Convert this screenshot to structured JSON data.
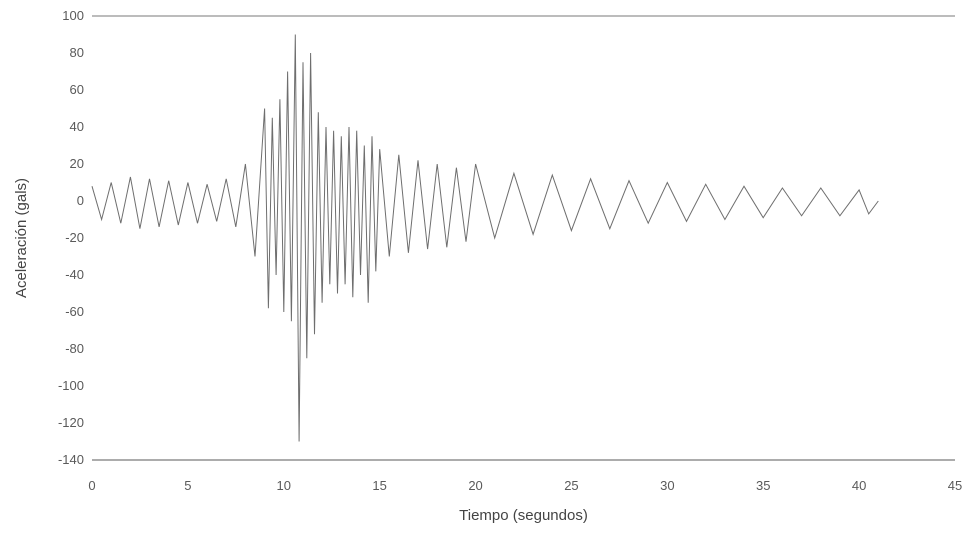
{
  "chart_data": {
    "type": "line",
    "title": "",
    "xlabel": "Tiempo (segundos)",
    "ylabel": "Aceleración (gals)",
    "xlim": [
      0,
      45
    ],
    "ylim": [
      -140,
      100
    ],
    "x_ticks": [
      0,
      5,
      10,
      15,
      20,
      25,
      30,
      35,
      40,
      45
    ],
    "y_ticks": [
      100,
      80,
      60,
      40,
      20,
      0,
      -20,
      -40,
      -60,
      -80,
      -100,
      -120,
      -140
    ],
    "grid": false,
    "legend": "none",
    "line_color": "#6e6e6e",
    "series": [
      {
        "x": [
          0,
          0.5,
          1,
          1.5,
          2,
          2.5,
          3,
          3.5,
          4,
          4.5,
          5,
          5.5,
          6,
          6.5,
          7,
          7.5,
          8,
          8.5,
          9,
          9.2,
          9.4,
          9.6,
          9.8,
          10,
          10.2,
          10.4,
          10.6,
          10.8,
          11,
          11.2,
          11.4,
          11.6,
          11.8,
          12,
          12.2,
          12.4,
          12.6,
          12.8,
          13,
          13.2,
          13.4,
          13.6,
          13.8,
          14,
          14.2,
          14.4,
          14.6,
          14.8,
          15,
          15.5,
          16,
          16.5,
          17,
          17.5,
          18,
          18.5,
          19,
          19.5,
          20,
          21,
          22,
          23,
          24,
          25,
          26,
          27,
          28,
          29,
          30,
          31,
          32,
          33,
          34,
          35,
          36,
          37,
          38,
          39,
          40,
          40.5,
          41
        ],
        "y": [
          8,
          -10,
          10,
          -12,
          13,
          -15,
          12,
          -14,
          11,
          -13,
          10,
          -12,
          9,
          -11,
          12,
          -14,
          20,
          -30,
          50,
          -58,
          45,
          -40,
          55,
          -60,
          70,
          -65,
          90,
          -130,
          75,
          -85,
          80,
          -72,
          48,
          -55,
          40,
          -45,
          38,
          -50,
          35,
          -45,
          40,
          -52,
          38,
          -40,
          30,
          -55,
          35,
          -38,
          28,
          -30,
          25,
          -28,
          22,
          -26,
          20,
          -25,
          18,
          -22,
          20,
          -20,
          15,
          -18,
          14,
          -16,
          12,
          -15,
          11,
          -12,
          10,
          -11,
          9,
          -10,
          8,
          -9,
          7,
          -8,
          7,
          -8,
          6,
          -7,
          0
        ]
      }
    ]
  }
}
